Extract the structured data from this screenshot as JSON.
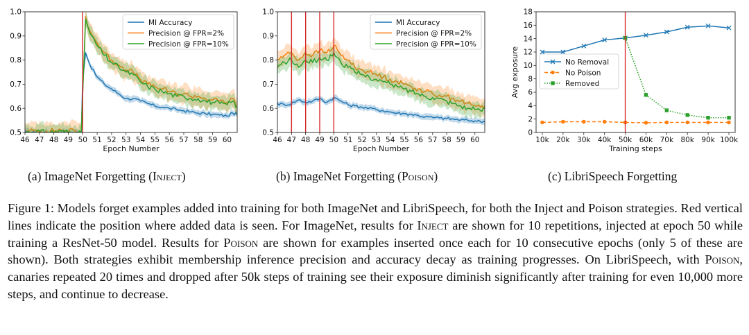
{
  "charts": [
    {
      "id": "a",
      "xlabel": "Epoch Number",
      "xticks": [
        "46",
        "47",
        "48",
        "49",
        "50",
        "51",
        "52",
        "53",
        "54",
        "55",
        "56",
        "57",
        "58",
        "59",
        "60"
      ],
      "yticks": [
        "0.5",
        "0.6",
        "0.7",
        "0.8",
        "0.9",
        "1.0"
      ],
      "legend": [
        "MI Accuracy",
        "Precision @ FPR=2%",
        "Precision @ FPR=10%"
      ]
    },
    {
      "id": "b",
      "xlabel": "Epoch Number",
      "xticks": [
        "46",
        "47",
        "48",
        "49",
        "50",
        "51",
        "52",
        "53",
        "54",
        "55",
        "56",
        "57",
        "58",
        "59",
        "60"
      ],
      "yticks": [
        "0.5",
        "0.6",
        "0.7",
        "0.8",
        "0.9",
        "1.0"
      ],
      "legend": [
        "MI Accuracy",
        "Precision @ FPR=2%",
        "Precision @ FPR=10%"
      ]
    },
    {
      "id": "c",
      "xlabel": "Training steps",
      "ylabel": "Avg exposure",
      "xticks": [
        "10k",
        "20k",
        "30k",
        "40k",
        "50k",
        "60k",
        "70k",
        "80k",
        "90k",
        "100k"
      ],
      "yticks": [
        "0",
        "2",
        "4",
        "6",
        "8",
        "10",
        "12",
        "14",
        "16",
        "18"
      ],
      "legend": [
        "No Removal",
        "No Poison",
        "Removed"
      ]
    }
  ],
  "chart_data": [
    {
      "type": "line",
      "xlim": [
        46,
        60.7
      ],
      "ylim": [
        0.5,
        1.0
      ],
      "vlines": [
        50
      ],
      "series": [
        {
          "name": "MI Accuracy",
          "color": "#1f77b4",
          "x": [
            46,
            49.9,
            50,
            50.2,
            50.5,
            51,
            51.5,
            52,
            52.5,
            53,
            53.5,
            54,
            54.5,
            55,
            55.5,
            56,
            56.5,
            57,
            57.5,
            58,
            58.5,
            59,
            59.5,
            60,
            60.4,
            60.7
          ],
          "y": [
            0.5,
            0.5,
            0.72,
            0.83,
            0.78,
            0.73,
            0.7,
            0.68,
            0.66,
            0.64,
            0.64,
            0.63,
            0.62,
            0.61,
            0.605,
            0.6,
            0.595,
            0.59,
            0.585,
            0.58,
            0.578,
            0.575,
            0.572,
            0.568,
            0.58,
            0.575
          ]
        },
        {
          "name": "Precision @ FPR=2%",
          "color": "#ff7f0e",
          "x": [
            46,
            46.8,
            47.5,
            48.5,
            49.5,
            49.9,
            50.2,
            50.5,
            51,
            51.5,
            52,
            52.5,
            53,
            53.5,
            54,
            54.5,
            55,
            55.5,
            56,
            56.5,
            57,
            57.5,
            58,
            58.5,
            59,
            59.5,
            60,
            60.4,
            60.7
          ],
          "y": [
            0.5,
            0.51,
            0.505,
            0.51,
            0.505,
            0.5,
            0.98,
            0.92,
            0.87,
            0.83,
            0.8,
            0.78,
            0.76,
            0.75,
            0.72,
            0.7,
            0.69,
            0.68,
            0.67,
            0.66,
            0.66,
            0.65,
            0.65,
            0.64,
            0.635,
            0.63,
            0.625,
            0.64,
            0.61
          ]
        },
        {
          "name": "Precision @ FPR=10%",
          "color": "#2ca02c",
          "x": [
            46,
            46.8,
            47.5,
            48.5,
            49.5,
            49.9,
            50.2,
            50.5,
            51,
            51.5,
            52,
            52.5,
            53,
            53.5,
            54,
            54.5,
            55,
            55.5,
            56,
            56.5,
            57,
            57.5,
            58,
            58.5,
            59,
            59.5,
            60,
            60.4,
            60.7
          ],
          "y": [
            0.5,
            0.505,
            0.5,
            0.505,
            0.5,
            0.5,
            0.97,
            0.91,
            0.86,
            0.82,
            0.79,
            0.77,
            0.75,
            0.74,
            0.71,
            0.69,
            0.68,
            0.67,
            0.66,
            0.65,
            0.65,
            0.64,
            0.64,
            0.63,
            0.625,
            0.62,
            0.615,
            0.63,
            0.605
          ]
        }
      ]
    },
    {
      "type": "line",
      "xlim": [
        46,
        60.7
      ],
      "ylim": [
        0.5,
        1.0
      ],
      "vlines": [
        47,
        48,
        49,
        50
      ],
      "series": [
        {
          "name": "MI Accuracy",
          "color": "#1f77b4",
          "x": [
            46,
            46.5,
            47,
            47.5,
            48,
            48.5,
            49,
            49.5,
            50,
            50.5,
            51,
            51.5,
            52,
            52.5,
            53,
            53.5,
            54,
            54.5,
            55,
            55.5,
            56,
            56.5,
            57,
            57.5,
            58,
            58.5,
            59,
            59.5,
            60,
            60.4,
            60.7
          ],
          "y": [
            0.62,
            0.615,
            0.62,
            0.635,
            0.625,
            0.63,
            0.64,
            0.625,
            0.645,
            0.63,
            0.615,
            0.61,
            0.605,
            0.6,
            0.595,
            0.59,
            0.585,
            0.58,
            0.578,
            0.575,
            0.57,
            0.565,
            0.562,
            0.56,
            0.558,
            0.555,
            0.552,
            0.55,
            0.548,
            0.545,
            0.545
          ]
        },
        {
          "name": "Precision @ FPR=2%",
          "color": "#ff7f0e",
          "x": [
            46,
            46.5,
            47,
            47.5,
            48,
            48.5,
            49,
            49.5,
            50,
            50.5,
            51,
            51.5,
            52,
            52.5,
            53,
            53.5,
            54,
            54.5,
            55,
            55.5,
            56,
            56.5,
            57,
            57.5,
            58,
            58.5,
            59,
            59.5,
            60,
            60.4,
            60.7
          ],
          "y": [
            0.8,
            0.82,
            0.83,
            0.8,
            0.83,
            0.82,
            0.84,
            0.83,
            0.86,
            0.82,
            0.8,
            0.77,
            0.76,
            0.75,
            0.74,
            0.73,
            0.72,
            0.71,
            0.7,
            0.69,
            0.68,
            0.67,
            0.66,
            0.655,
            0.65,
            0.64,
            0.63,
            0.62,
            0.61,
            0.605,
            0.61
          ]
        },
        {
          "name": "Precision @ FPR=10%",
          "color": "#2ca02c",
          "x": [
            46,
            46.5,
            47,
            47.5,
            48,
            48.5,
            49,
            49.5,
            50,
            50.5,
            51,
            51.5,
            52,
            52.5,
            53,
            53.5,
            54,
            54.5,
            55,
            55.5,
            56,
            56.5,
            57,
            57.5,
            58,
            58.5,
            59,
            59.5,
            60,
            60.4,
            60.7
          ],
          "y": [
            0.77,
            0.79,
            0.8,
            0.77,
            0.8,
            0.79,
            0.81,
            0.8,
            0.83,
            0.79,
            0.77,
            0.75,
            0.74,
            0.73,
            0.72,
            0.71,
            0.7,
            0.69,
            0.68,
            0.67,
            0.66,
            0.65,
            0.645,
            0.64,
            0.63,
            0.62,
            0.61,
            0.6,
            0.595,
            0.59,
            0.6
          ]
        }
      ]
    },
    {
      "type": "line",
      "xlabel": "Training steps",
      "ylabel": "Avg exposure",
      "xlim": [
        7,
        103
      ],
      "ylim": [
        0,
        18
      ],
      "vlines": [
        50
      ],
      "series": [
        {
          "name": "No Removal",
          "color": "#1f77b4",
          "marker": "x",
          "dash": "solid",
          "x": [
            10,
            20,
            30,
            40,
            50,
            60,
            70,
            80,
            90,
            100
          ],
          "y": [
            12.0,
            12.0,
            12.9,
            13.8,
            14.1,
            14.5,
            15.0,
            15.7,
            15.9,
            15.6
          ]
        },
        {
          "name": "No Poison",
          "color": "#ff7f0e",
          "marker": "o",
          "dash": "dashed",
          "x": [
            10,
            20,
            30,
            40,
            50,
            60,
            70,
            80,
            90,
            100
          ],
          "y": [
            1.5,
            1.6,
            1.6,
            1.6,
            1.5,
            1.45,
            1.5,
            1.5,
            1.5,
            1.5
          ]
        },
        {
          "name": "Removed",
          "color": "#2ca02c",
          "marker": "s",
          "dash": "dotted",
          "x": [
            50,
            60,
            70,
            80,
            90,
            100
          ],
          "y": [
            14.1,
            5.6,
            3.3,
            2.6,
            2.2,
            2.2
          ]
        }
      ]
    }
  ],
  "captions": {
    "a": {
      "pre": "(a) ImageNet Forgetting (",
      "sc": "Inject",
      "post": ")"
    },
    "b": {
      "pre": "(b) ImageNet Forgetting (",
      "sc": "Poison",
      "post": ")"
    },
    "c": "(c) LibriSpeech Forgetting"
  },
  "figure_caption": {
    "p1": "Figure 1: Models forget examples added into training for both ImageNet and LibriSpeech, for both the Inject and Poison strategies. Red vertical lines indicate the position where added data is seen. For ImageNet, results for ",
    "sc1": "Inject",
    "p2": " are shown for 10 repetitions, injected at epoch 50 while training a ResNet-50 model. Results for ",
    "sc2": "Poison",
    "p3": " are shown for examples inserted once each for 10 consecutive epochs (only 5 of these are shown). Both strategies exhibit membership inference precision and accuracy decay as training progresses. On LibriSpeech, with ",
    "sc3": "Poison",
    "p4": ", canaries repeated 20 times and dropped after 50k steps of training see their exposure diminish significantly after training for even 10,000 more steps, and continue to decrease."
  }
}
